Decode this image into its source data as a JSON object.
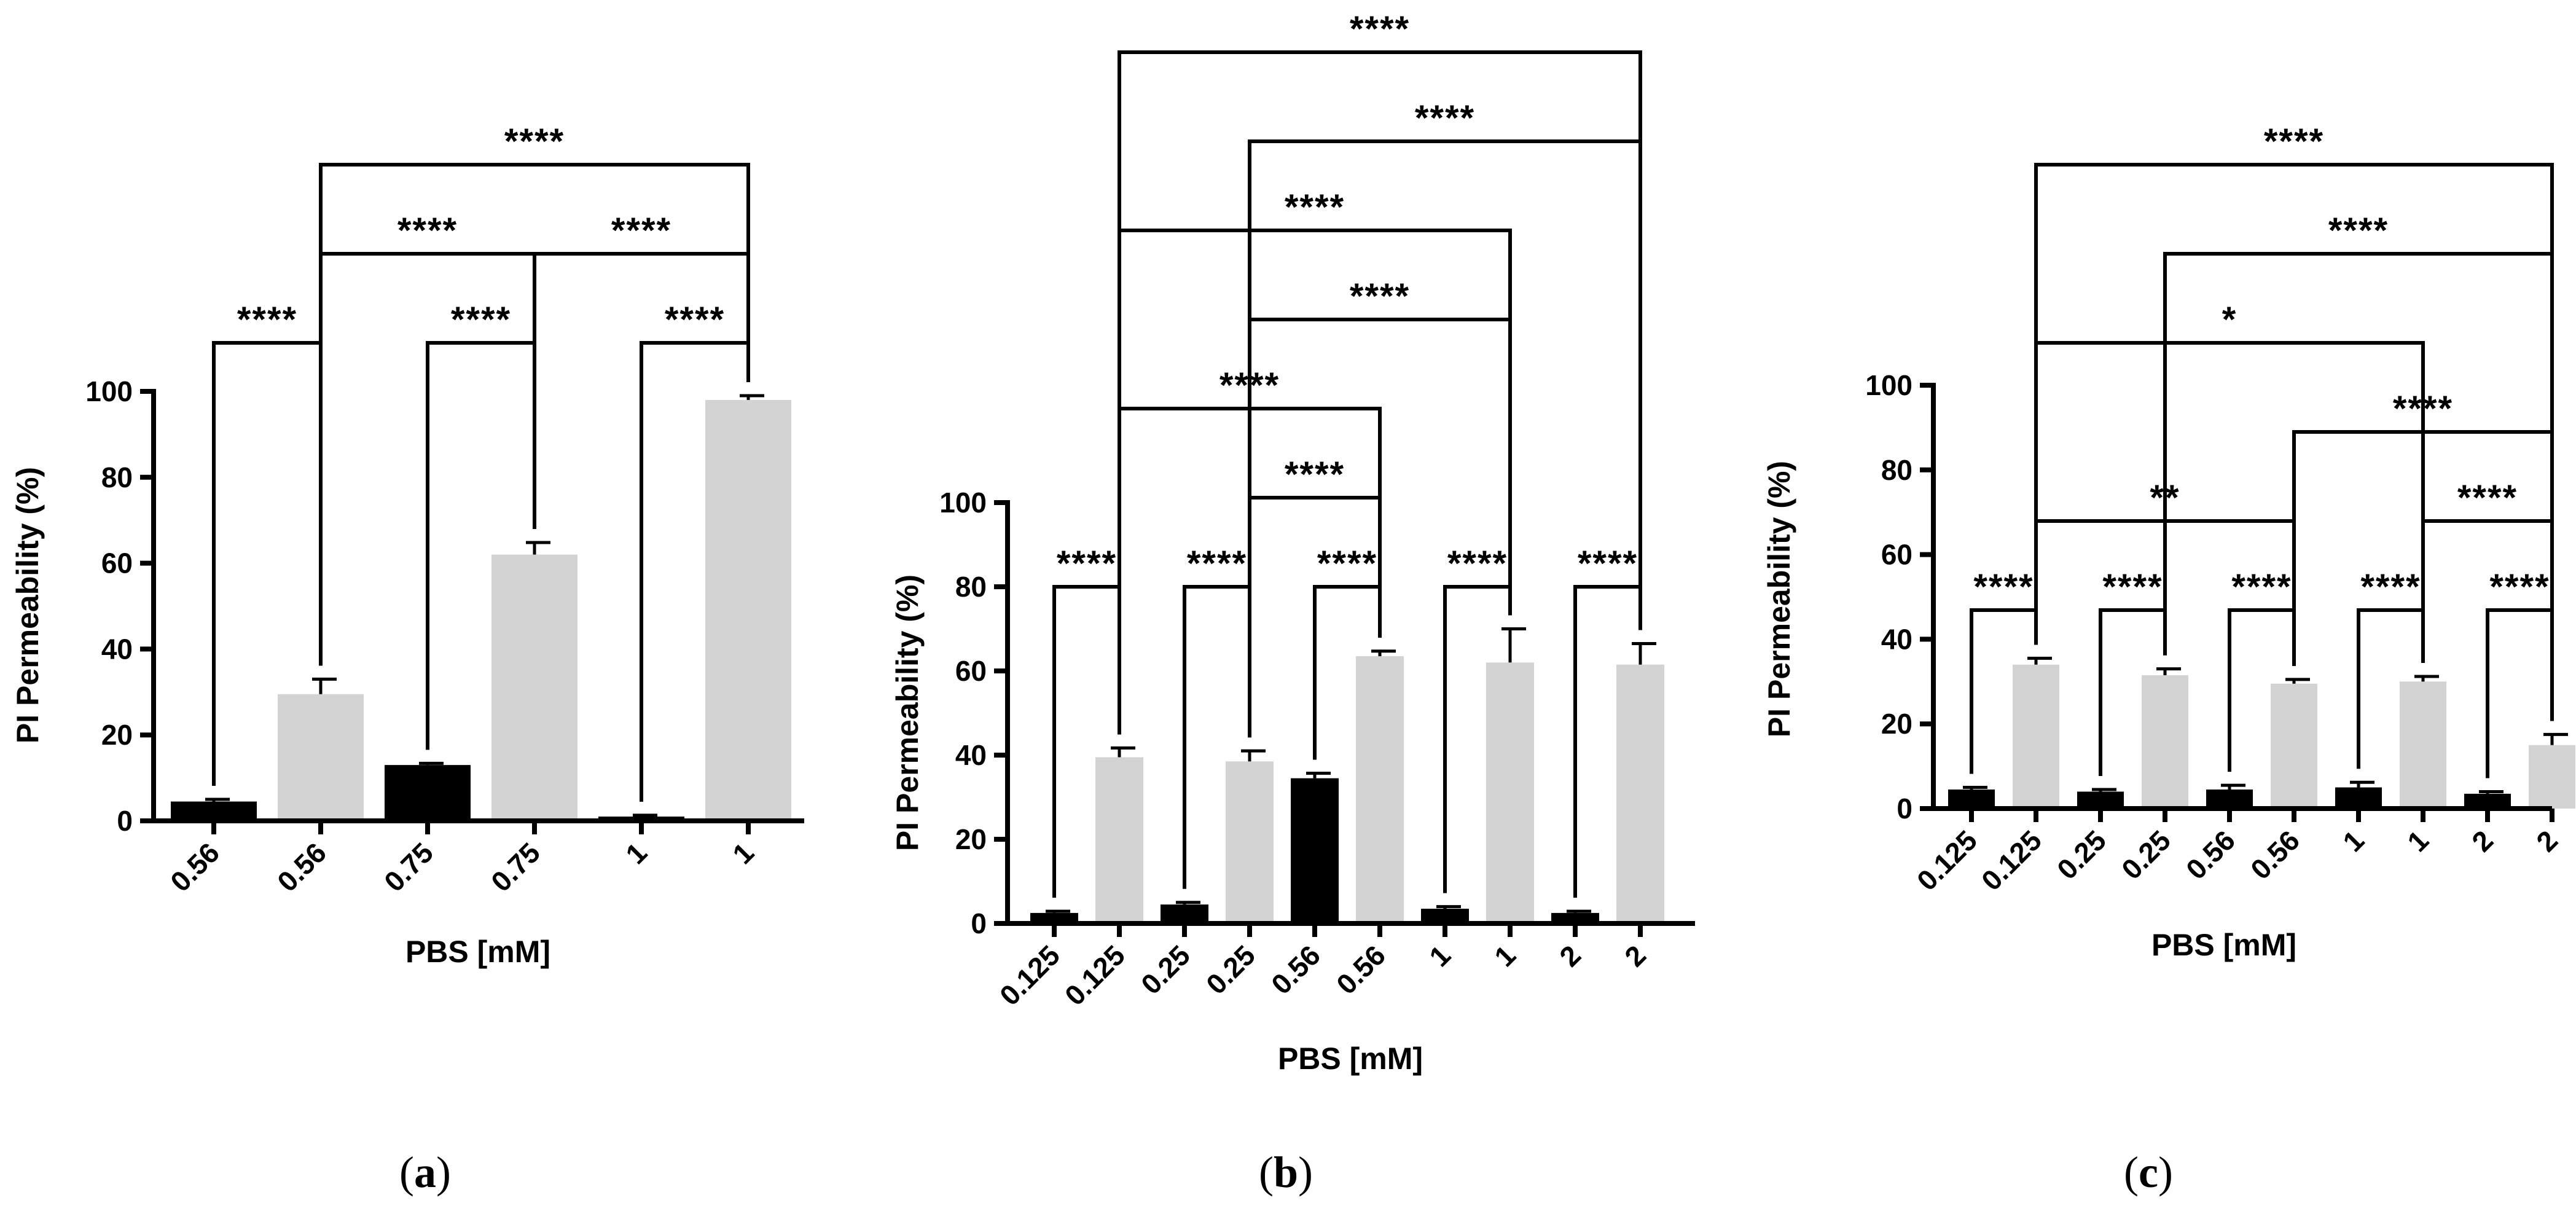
{
  "chart_data": [
    {
      "type": "bar",
      "panel": "(a)",
      "panel_letter": "a",
      "xlabel": "PBS [mM]",
      "ylabel": "PI Permeability (%)",
      "ylim": [
        0,
        100
      ],
      "yticks": [
        0,
        20,
        40,
        60,
        80,
        100
      ],
      "categories": [
        "0.56",
        "0.56",
        "0.75",
        "0.75",
        "1",
        "1"
      ],
      "values": [
        4.5,
        29.5,
        13,
        62,
        1,
        98
      ],
      "errors": [
        0.5,
        3.5,
        0.4,
        2.8,
        0.3,
        1
      ],
      "bar_colors": [
        "#000000",
        "#d3d3d3",
        "#000000",
        "#d3d3d3",
        "#000000",
        "#d3d3d3"
      ],
      "comparisons": [
        {
          "from": 0,
          "to": 1,
          "label": "****",
          "level": 0
        },
        {
          "from": 2,
          "to": 3,
          "label": "****",
          "level": 0
        },
        {
          "from": 4,
          "to": 5,
          "label": "****",
          "level": 0
        },
        {
          "from": 1,
          "to": 3,
          "label": "****",
          "level": 1
        },
        {
          "from": 3,
          "to": 5,
          "label": "****",
          "level": 1
        },
        {
          "from": 1,
          "to": 5,
          "label": "****",
          "level": 2
        }
      ]
    },
    {
      "type": "bar",
      "panel": "(b)",
      "panel_letter": "b",
      "xlabel": "PBS [mM]",
      "ylabel": "PI Permeability (%)",
      "ylim": [
        0,
        100
      ],
      "yticks": [
        0,
        20,
        40,
        60,
        80,
        100
      ],
      "categories": [
        "0.125",
        "0.125",
        "0.25",
        "0.25",
        "0.56",
        "0.56",
        "1",
        "1",
        "2",
        "2"
      ],
      "values": [
        2.5,
        39.5,
        4.5,
        38.5,
        34.5,
        63.5,
        3.5,
        62,
        2.5,
        61.5
      ],
      "errors": [
        0.4,
        2.2,
        0.5,
        2.5,
        1.2,
        1.2,
        0.5,
        8,
        0.4,
        5
      ],
      "bar_colors": [
        "#000000",
        "#d3d3d3",
        "#000000",
        "#d3d3d3",
        "#000000",
        "#d3d3d3",
        "#000000",
        "#d3d3d3",
        "#000000",
        "#d3d3d3"
      ],
      "comparisons": [
        {
          "from": 0,
          "to": 1,
          "label": "****",
          "level": 0
        },
        {
          "from": 2,
          "to": 3,
          "label": "****",
          "level": 0
        },
        {
          "from": 4,
          "to": 5,
          "label": "****",
          "level": 0
        },
        {
          "from": 6,
          "to": 7,
          "label": "****",
          "level": 0
        },
        {
          "from": 8,
          "to": 9,
          "label": "****",
          "level": 0
        },
        {
          "from": 3,
          "to": 5,
          "label": "****",
          "level": 1
        },
        {
          "from": 1,
          "to": 5,
          "label": "****",
          "level": 2
        },
        {
          "from": 3,
          "to": 7,
          "label": "****",
          "level": 3
        },
        {
          "from": 1,
          "to": 7,
          "label": "****",
          "level": 4
        },
        {
          "from": 3,
          "to": 9,
          "label": "****",
          "level": 5
        },
        {
          "from": 1,
          "to": 9,
          "label": "****",
          "level": 6
        }
      ]
    },
    {
      "type": "bar",
      "panel": "(c)",
      "panel_letter": "c",
      "xlabel": "PBS [mM]",
      "ylabel": "PI Permeability (%)",
      "ylim": [
        0,
        100
      ],
      "yticks": [
        0,
        20,
        40,
        60,
        80,
        100
      ],
      "categories": [
        "0.125",
        "0.125",
        "0.25",
        "0.25",
        "0.56",
        "0.56",
        "1",
        "1",
        "2",
        "2"
      ],
      "values": [
        4.5,
        34,
        4,
        31.5,
        4.5,
        29.5,
        5,
        30,
        3.5,
        15
      ],
      "errors": [
        0.5,
        1.5,
        0.5,
        1.5,
        1,
        1,
        1.2,
        1.2,
        0.5,
        2.5
      ],
      "bar_colors": [
        "#000000",
        "#d3d3d3",
        "#000000",
        "#d3d3d3",
        "#000000",
        "#d3d3d3",
        "#000000",
        "#d3d3d3",
        "#000000",
        "#d3d3d3"
      ],
      "comparisons": [
        {
          "from": 0,
          "to": 1,
          "label": "****",
          "level": 0
        },
        {
          "from": 2,
          "to": 3,
          "label": "****",
          "level": 0
        },
        {
          "from": 4,
          "to": 5,
          "label": "****",
          "level": 0
        },
        {
          "from": 6,
          "to": 7,
          "label": "****",
          "level": 0
        },
        {
          "from": 8,
          "to": 9,
          "label": "****",
          "level": 0
        },
        {
          "from": 1,
          "to": 5,
          "label": "**",
          "level": 1
        },
        {
          "from": 7,
          "to": 9,
          "label": "****",
          "level": 1
        },
        {
          "from": 5,
          "to": 9,
          "label": "****",
          "level": 2
        },
        {
          "from": 1,
          "to": 7,
          "label": "*",
          "level": 3
        },
        {
          "from": 3,
          "to": 9,
          "label": "****",
          "level": 4
        },
        {
          "from": 1,
          "to": 9,
          "label": "****",
          "level": 5
        }
      ]
    }
  ]
}
